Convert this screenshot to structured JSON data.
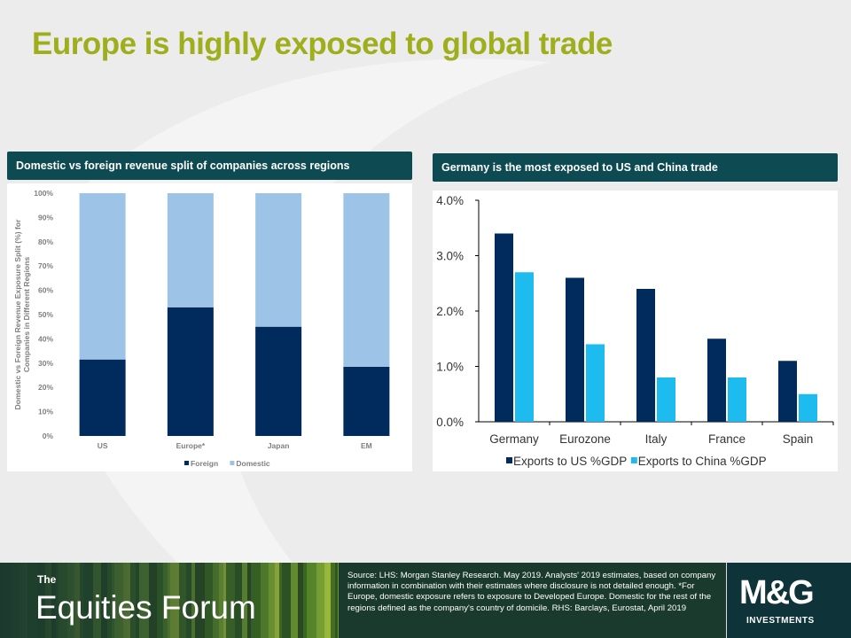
{
  "slide": {
    "title": "Europe is highly exposed to global trade"
  },
  "left_panel": {
    "header": "Domestic vs foreign revenue split of companies across regions"
  },
  "right_panel": {
    "header": "Germany is the most exposed to US and China trade"
  },
  "chart_data": [
    {
      "type": "bar",
      "stacked": true,
      "ylabel": "Domestic vs Foreign Revenue Exposure Split (%) for Companies in Different Regions",
      "xlabel": "",
      "categories": [
        "US",
        "Europe*",
        "Japan",
        "EM"
      ],
      "y_ticks": [
        "0%",
        "10%",
        "20%",
        "30%",
        "40%",
        "50%",
        "60%",
        "70%",
        "80%",
        "90%",
        "100%"
      ],
      "ylim": [
        0,
        100
      ],
      "series": [
        {
          "name": "Foreign",
          "values": [
            31.5,
            53,
            45,
            28.5
          ],
          "color": "#002b5c"
        },
        {
          "name": "Domestic",
          "values": [
            68.5,
            47,
            55,
            71.5
          ],
          "color": "#9dc3e6"
        }
      ],
      "legend": "bottom"
    },
    {
      "type": "bar",
      "categories": [
        "Germany",
        "Eurozone",
        "Italy",
        "France",
        "Spain"
      ],
      "y_ticks": [
        "0.0%",
        "1.0%",
        "2.0%",
        "3.0%",
        "4.0%"
      ],
      "ylim": [
        0,
        4
      ],
      "series": [
        {
          "name": "Exports to US %GDP",
          "values": [
            3.4,
            2.6,
            2.4,
            1.5,
            1.1
          ],
          "color": "#002b5c"
        },
        {
          "name": "Exports to China %GDP",
          "values": [
            2.7,
            1.4,
            0.8,
            0.8,
            0.5
          ],
          "color": "#1ebbee"
        }
      ],
      "legend": "bottom"
    }
  ],
  "footer": {
    "brand_the": "The",
    "brand_name": "Equities Forum",
    "source_text": "Source: LHS: Morgan Stanley Research. May 2019. Analysts' 2019 estimates, based on company information in combination with their estimates where disclosure is not detailed enough. *For Europe, domestic exposure refers to exposure to Developed Europe. Domestic for the rest of the regions defined as the company's country of domicile. RHS: Barclays, Eurostat, April 2019",
    "logo_text": "M&G",
    "logo_sub": "INVESTMENTS"
  }
}
